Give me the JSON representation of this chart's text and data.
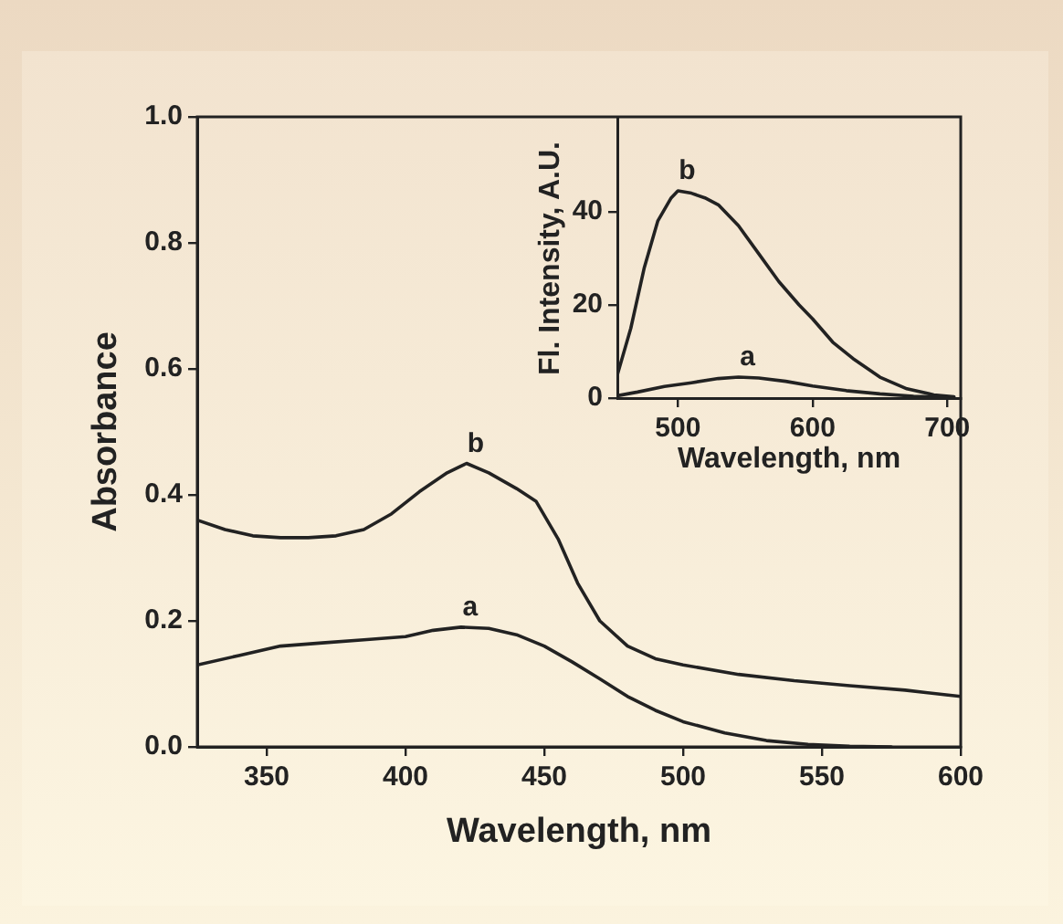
{
  "chart_data": [
    {
      "type": "line",
      "xlabel": "Wavelength, nm",
      "ylabel": "Absorbance",
      "xlim": [
        325,
        600
      ],
      "xticks": [
        350,
        400,
        450,
        500,
        550,
        600
      ],
      "ylim": [
        0,
        1
      ],
      "yticks": [
        {
          "value": 0,
          "label": "0.0"
        },
        {
          "value": 0.2,
          "label": "0.2"
        },
        {
          "value": 0.4,
          "label": "0.4"
        },
        {
          "value": 0.6,
          "label": "0.6"
        },
        {
          "value": 0.8,
          "label": "0.8"
        },
        {
          "value": 1,
          "label": "1.0"
        }
      ],
      "series": [
        {
          "name": "a",
          "color": "#222222",
          "x": [
            325,
            340,
            355,
            370,
            385,
            400,
            410,
            420,
            430,
            440,
            450,
            460,
            470,
            480,
            490,
            500,
            515,
            530,
            545,
            560,
            575
          ],
          "values": [
            0.13,
            0.145,
            0.16,
            0.165,
            0.17,
            0.175,
            0.185,
            0.19,
            0.188,
            0.178,
            0.16,
            0.135,
            0.108,
            0.08,
            0.058,
            0.04,
            0.022,
            0.01,
            0.004,
            0.001,
            0
          ]
        },
        {
          "name": "b",
          "color": "#222222",
          "x": [
            325,
            335,
            345,
            355,
            365,
            375,
            385,
            395,
            405,
            415,
            422,
            430,
            440,
            447,
            455,
            462,
            470,
            480,
            490,
            500,
            520,
            540,
            560,
            580,
            600
          ],
          "values": [
            0.36,
            0.345,
            0.335,
            0.332,
            0.332,
            0.335,
            0.345,
            0.37,
            0.405,
            0.435,
            0.45,
            0.435,
            0.41,
            0.39,
            0.33,
            0.26,
            0.2,
            0.16,
            0.14,
            0.13,
            0.115,
            0.105,
            0.097,
            0.09,
            0.08
          ]
        }
      ]
    },
    {
      "type": "line",
      "xlabel": "Wavelength, nm",
      "ylabel": "Fl. Intensity, A.U.",
      "xlim": [
        455,
        710
      ],
      "xticks": [
        500,
        600,
        700
      ],
      "ylim": [
        0,
        60
      ],
      "yticks": [
        0,
        20,
        40
      ],
      "series": [
        {
          "name": "a",
          "color": "#222222",
          "x": [
            455,
            470,
            490,
            510,
            530,
            545,
            560,
            580,
            600,
            625,
            650,
            675,
            700
          ],
          "values": [
            0.5,
            1.3,
            2.5,
            3.3,
            4.2,
            4.5,
            4.3,
            3.6,
            2.6,
            1.6,
            0.9,
            0.4,
            0.2
          ]
        },
        {
          "name": "b",
          "color": "#222222",
          "x": [
            455,
            465,
            475,
            485,
            495,
            500,
            510,
            520,
            530,
            545,
            560,
            575,
            590,
            600,
            615,
            630,
            650,
            670,
            690,
            705
          ],
          "values": [
            5,
            15,
            28,
            38,
            43,
            44.5,
            44,
            43,
            41.5,
            37,
            31,
            25,
            20,
            17,
            12,
            8.5,
            4.5,
            2,
            0.7,
            0.3
          ]
        }
      ]
    }
  ]
}
